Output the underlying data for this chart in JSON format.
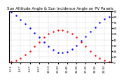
{
  "title": "Sun Altitude Angle & Sun Incidence Angle on PV Panels",
  "background_color": "#ffffff",
  "grid_color": "#aaaaaa",
  "blue_x": [
    0,
    1,
    2,
    3,
    4,
    5,
    6,
    7,
    8,
    9,
    10,
    11,
    12,
    13,
    14,
    15,
    16,
    17,
    18,
    19,
    20,
    21
  ],
  "blue_y": [
    88,
    82,
    75,
    68,
    60,
    52,
    44,
    36,
    28,
    22,
    18,
    17,
    19,
    24,
    30,
    38,
    46,
    54,
    62,
    70,
    76,
    80
  ],
  "red_x": [
    0,
    1,
    2,
    3,
    4,
    5,
    6,
    7,
    8,
    9,
    10,
    11,
    12,
    13,
    14,
    15,
    16,
    17,
    18,
    19,
    20,
    21
  ],
  "red_y": [
    2,
    4,
    8,
    14,
    20,
    28,
    36,
    44,
    50,
    54,
    56,
    56,
    54,
    50,
    44,
    36,
    28,
    20,
    13,
    8,
    4,
    2
  ],
  "y_ticks": [
    0,
    10,
    20,
    30,
    40,
    50,
    60,
    70,
    80,
    90
  ],
  "y_tick_labels": [
    "0",
    "10",
    "20",
    "30",
    "40",
    "50",
    "60",
    "70",
    "80",
    "90"
  ],
  "x_tick_positions": [
    0,
    2,
    4,
    6,
    8,
    10,
    12,
    14,
    16,
    18,
    20
  ],
  "x_tick_labels": [
    "2:15",
    "4:57",
    "6:27",
    "8:57",
    "10:13",
    "12:03",
    "13:45",
    "15:35",
    "17:35",
    "19:35",
    "20:35"
  ],
  "ylim": [
    0,
    90
  ],
  "xlim": [
    -0.5,
    21.5
  ],
  "marker_size": 1.5,
  "title_fontsize": 4,
  "tick_fontsize": 3.0,
  "y_axis_side": "right"
}
